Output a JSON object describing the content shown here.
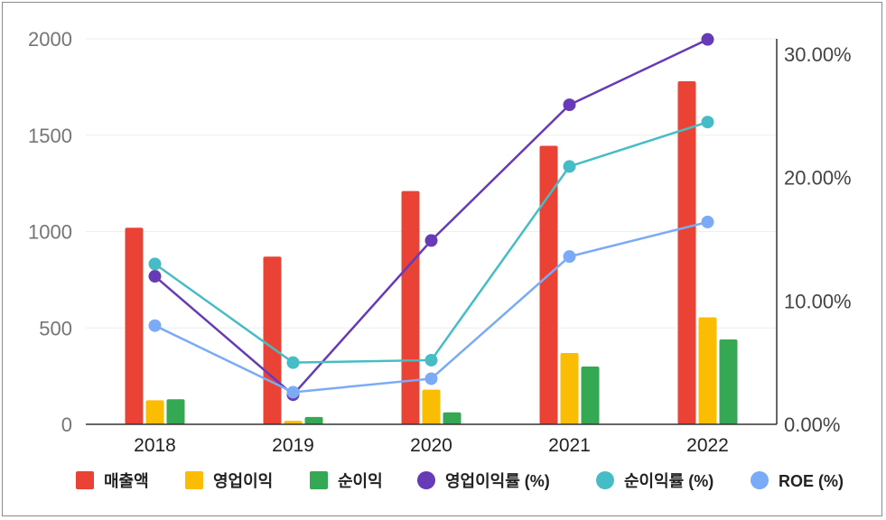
{
  "chart_data": {
    "type": "bar+line",
    "categories": [
      "2018",
      "2019",
      "2020",
      "2021",
      "2022"
    ],
    "bar_series": [
      {
        "name": "매출액",
        "color": "#EA4335",
        "values": [
          1020,
          870,
          1210,
          1445,
          1780
        ]
      },
      {
        "name": "영업이익",
        "color": "#FBBC04",
        "values": [
          125,
          18,
          180,
          370,
          555
        ]
      },
      {
        "name": "순이익",
        "color": "#34A853",
        "values": [
          130,
          38,
          62,
          300,
          440
        ]
      }
    ],
    "line_series": [
      {
        "name": "영업이익률 (%)",
        "color": "#673AB7",
        "values": [
          12.0,
          2.4,
          14.9,
          25.9,
          31.2
        ]
      },
      {
        "name": "순이익률 (%)",
        "color": "#46BDC6",
        "values": [
          13.0,
          5.0,
          5.2,
          20.9,
          24.5
        ]
      },
      {
        "name": "ROE (%)",
        "color": "#7BAAF7",
        "values": [
          8.0,
          2.6,
          3.7,
          13.6,
          16.4
        ]
      }
    ],
    "y_left": {
      "min": 0,
      "max": 2000,
      "ticks": [
        "0",
        "500",
        "1000",
        "1500",
        "2000"
      ],
      "tick_values": [
        0,
        500,
        1000,
        1500,
        2000
      ]
    },
    "y_right": {
      "min": 0,
      "max": 31.25,
      "ticks": [
        "0.00%",
        "10.00%",
        "20.00%",
        "30.00%"
      ],
      "tick_values": [
        0,
        10,
        20,
        30
      ]
    },
    "gridlines": true,
    "legend_position": "bottom"
  }
}
